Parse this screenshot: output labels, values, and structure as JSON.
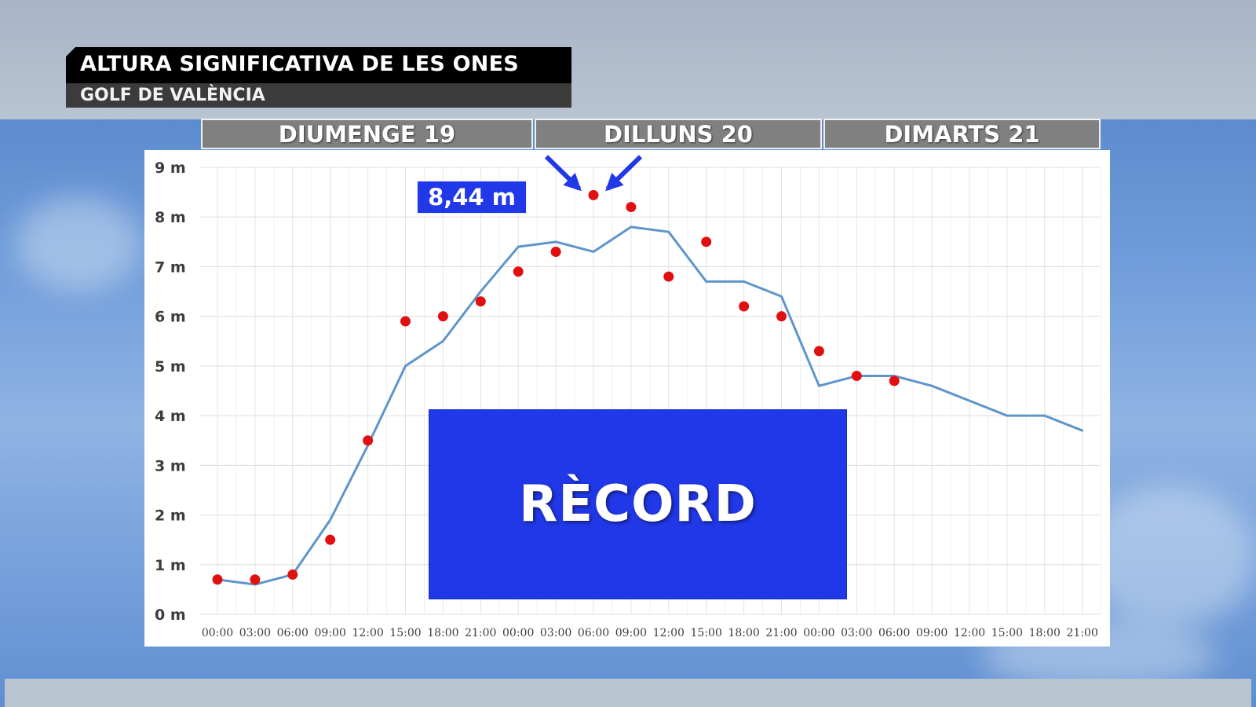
{
  "header": {
    "title": "ALTURA SIGNIFICATIVA DE LES ONES",
    "subtitle": "GOLF DE VALÈNCIA"
  },
  "days": [
    {
      "label": "DIUMENGE 19"
    },
    {
      "label": "DILLUNS 20"
    },
    {
      "label": "DIMARTS 21"
    }
  ],
  "annotations": {
    "peak_label": "8,44 m",
    "record_label": "RÈCORD"
  },
  "colors": {
    "line": "#5f95c9",
    "points": "#e01010",
    "record_box": "#2138e8",
    "arrows": "#2138e8",
    "day_header": "#808080"
  },
  "chart_data": {
    "type": "line",
    "title": "ALTURA SIGNIFICATIVA DE LES ONES",
    "subtitle": "GOLF DE VALÈNCIA",
    "ylim": [
      0,
      9
    ],
    "y_ticks": [
      "0 m",
      "1 m",
      "2 m",
      "3 m",
      "4 m",
      "5 m",
      "6 m",
      "7 m",
      "8 m",
      "9 m"
    ],
    "categories": [
      "00:00",
      "03:00",
      "06:00",
      "09:00",
      "12:00",
      "15:00",
      "18:00",
      "21:00",
      "00:00",
      "03:00",
      "06:00",
      "09:00",
      "12:00",
      "15:00",
      "18:00",
      "21:00",
      "00:00",
      "03:00",
      "06:00",
      "09:00",
      "12:00",
      "15:00",
      "18:00",
      "21:00"
    ],
    "grid": true,
    "series": [
      {
        "type": "line",
        "values": [
          0.7,
          0.6,
          0.8,
          1.9,
          3.4,
          5.0,
          5.5,
          6.5,
          7.4,
          7.5,
          7.3,
          7.8,
          7.7,
          6.7,
          6.7,
          6.4,
          4.6,
          4.8,
          4.8,
          4.6,
          4.3,
          4.0,
          4.0,
          3.7
        ]
      },
      {
        "type": "scatter",
        "values": [
          0.7,
          0.7,
          0.8,
          1.5,
          3.5,
          5.9,
          6.0,
          6.3,
          6.9,
          7.3,
          8.44,
          8.2,
          6.8,
          7.5,
          6.2,
          6.0,
          5.3,
          4.8,
          4.7,
          null,
          null,
          null,
          null,
          null
        ]
      }
    ]
  }
}
